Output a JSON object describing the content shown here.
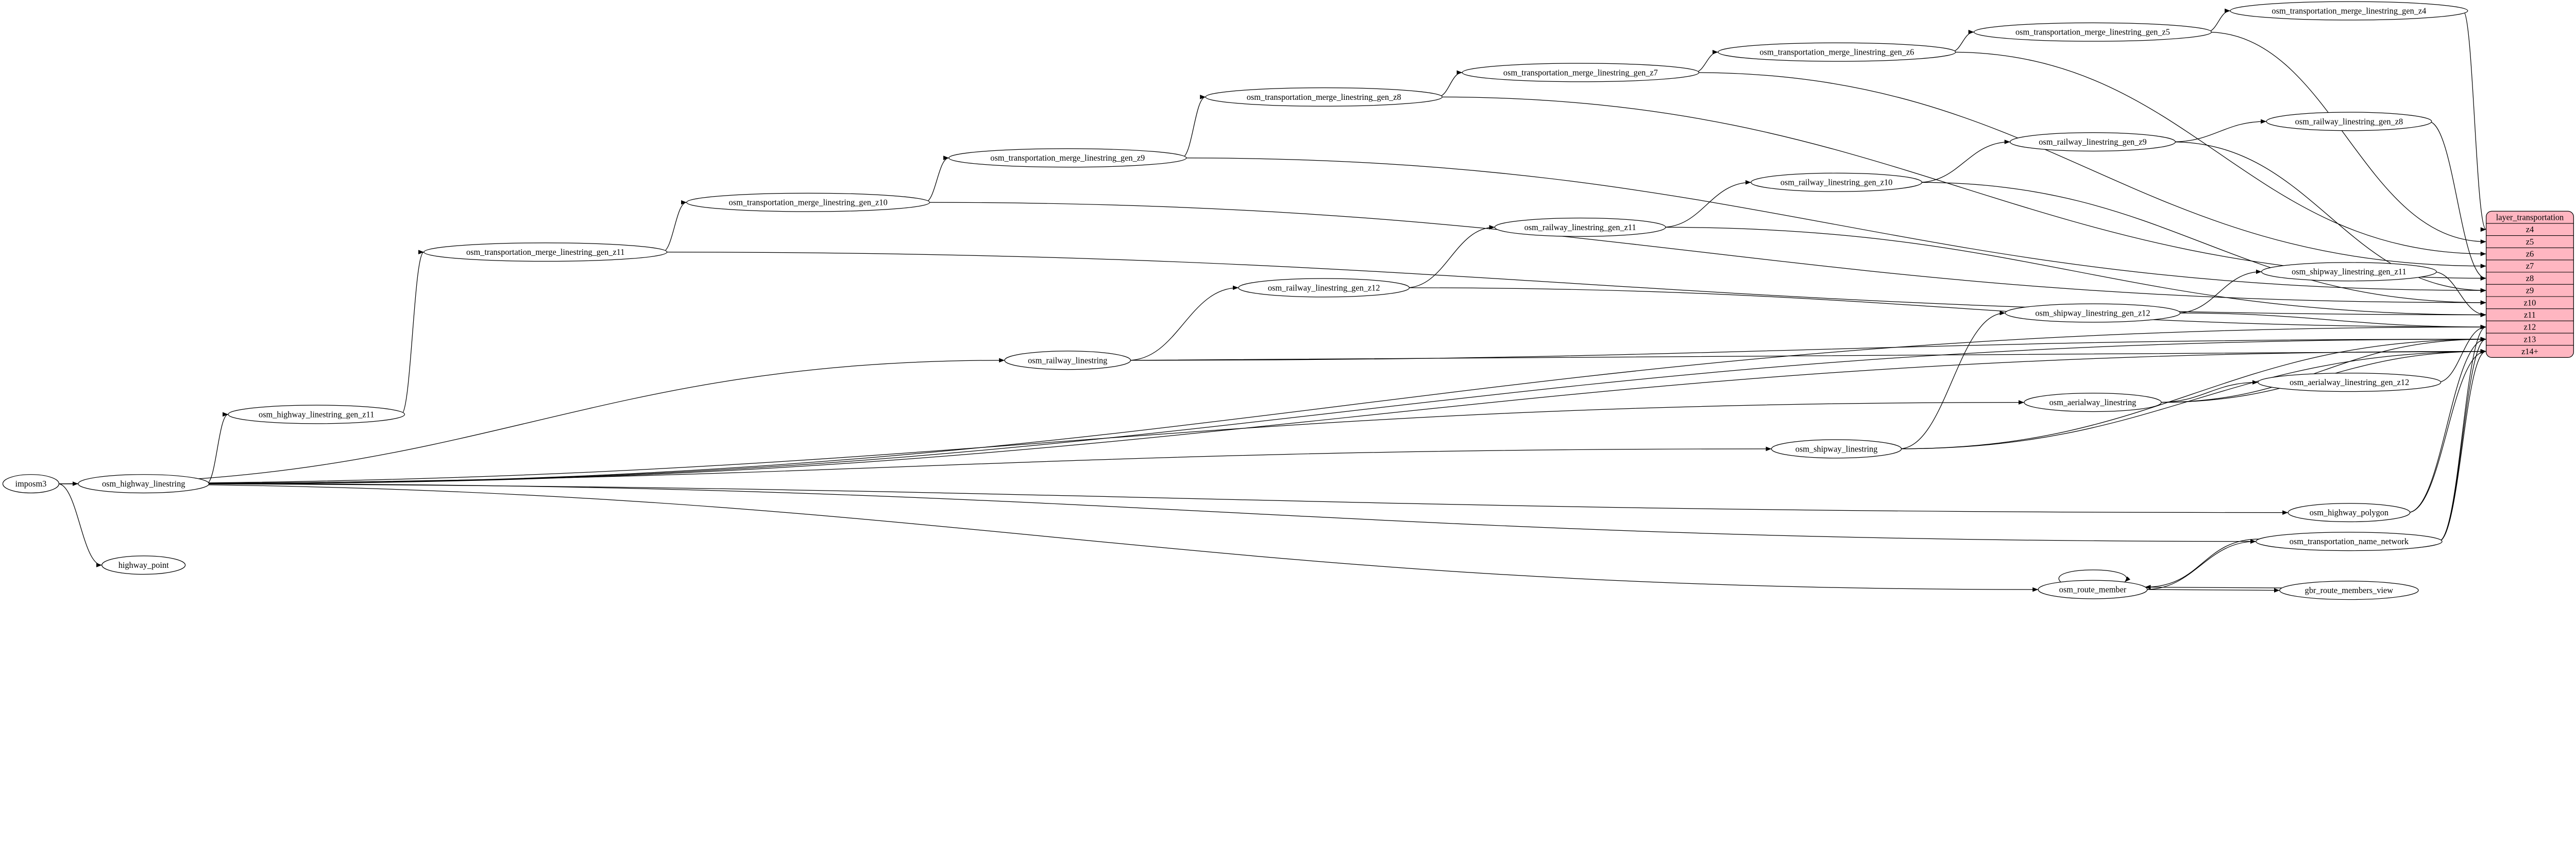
{
  "nodes": [
    {
      "id": "imposm3",
      "label": "imposm3"
    },
    {
      "id": "osm_highway_linestring",
      "label": "osm_highway_linestring"
    },
    {
      "id": "highway_point",
      "label": "highway_point"
    },
    {
      "id": "osm_highway_linestring_gen_z11",
      "label": "osm_highway_linestring_gen_z11"
    },
    {
      "id": "osm_transportation_merge_linestring_gen_z11",
      "label": "osm_transportation_merge_linestring_gen_z11"
    },
    {
      "id": "osm_transportation_merge_linestring_gen_z10",
      "label": "osm_transportation_merge_linestring_gen_z10"
    },
    {
      "id": "osm_transportation_merge_linestring_gen_z9",
      "label": "osm_transportation_merge_linestring_gen_z9"
    },
    {
      "id": "osm_transportation_merge_linestring_gen_z8",
      "label": "osm_transportation_merge_linestring_gen_z8"
    },
    {
      "id": "osm_transportation_merge_linestring_gen_z7",
      "label": "osm_transportation_merge_linestring_gen_z7"
    },
    {
      "id": "osm_transportation_merge_linestring_gen_z6",
      "label": "osm_transportation_merge_linestring_gen_z6"
    },
    {
      "id": "osm_transportation_merge_linestring_gen_z5",
      "label": "osm_transportation_merge_linestring_gen_z5"
    },
    {
      "id": "osm_transportation_merge_linestring_gen_z4",
      "label": "osm_transportation_merge_linestring_gen_z4"
    },
    {
      "id": "osm_railway_linestring",
      "label": "osm_railway_linestring"
    },
    {
      "id": "osm_railway_linestring_gen_z12",
      "label": "osm_railway_linestring_gen_z12"
    },
    {
      "id": "osm_railway_linestring_gen_z11",
      "label": "osm_railway_linestring_gen_z11"
    },
    {
      "id": "osm_railway_linestring_gen_z10",
      "label": "osm_railway_linestring_gen_z10"
    },
    {
      "id": "osm_railway_linestring_gen_z9",
      "label": "osm_railway_linestring_gen_z9"
    },
    {
      "id": "osm_railway_linestring_gen_z8",
      "label": "osm_railway_linestring_gen_z8"
    },
    {
      "id": "osm_shipway_linestring",
      "label": "osm_shipway_linestring"
    },
    {
      "id": "osm_shipway_linestring_gen_z12",
      "label": "osm_shipway_linestring_gen_z12"
    },
    {
      "id": "osm_shipway_linestring_gen_z11",
      "label": "osm_shipway_linestring_gen_z11"
    },
    {
      "id": "osm_aerialway_linestring",
      "label": "osm_aerialway_linestring"
    },
    {
      "id": "osm_aerialway_linestring_gen_z12",
      "label": "osm_aerialway_linestring_gen_z12"
    },
    {
      "id": "osm_highway_polygon",
      "label": "osm_highway_polygon"
    },
    {
      "id": "osm_transportation_name_network",
      "label": "osm_transportation_name_network"
    },
    {
      "id": "osm_route_member",
      "label": "osm_route_member"
    },
    {
      "id": "gbr_route_members_view",
      "label": "gbr_route_members_view"
    }
  ],
  "layer": {
    "title": "layer_transportation",
    "rows": [
      "z4",
      "z5",
      "z6",
      "z7",
      "z8",
      "z9",
      "z10",
      "z11",
      "z12",
      "z13",
      "z14+"
    ],
    "fill_color": "#ffb6c1"
  },
  "edges": [
    [
      "imposm3",
      "osm_highway_linestring"
    ],
    [
      "imposm3",
      "highway_point"
    ],
    [
      "imposm3",
      "osm_railway_linestring"
    ],
    [
      "imposm3",
      "osm_aerialway_linestring"
    ],
    [
      "imposm3",
      "osm_shipway_linestring"
    ],
    [
      "imposm3",
      "osm_highway_polygon"
    ],
    [
      "imposm3",
      "osm_route_member"
    ],
    [
      "osm_highway_linestring",
      "osm_highway_linestring_gen_z11"
    ],
    [
      "osm_highway_linestring",
      "osm_transportation_name_network"
    ],
    [
      "osm_highway_linestring",
      "layer:z12"
    ],
    [
      "osm_highway_linestring",
      "layer:z13"
    ],
    [
      "osm_highway_linestring",
      "layer:z14+"
    ],
    [
      "osm_highway_linestring_gen_z11",
      "osm_transportation_merge_linestring_gen_z11"
    ],
    [
      "osm_transportation_merge_linestring_gen_z11",
      "osm_transportation_merge_linestring_gen_z10"
    ],
    [
      "osm_transportation_merge_linestring_gen_z11",
      "layer:z11"
    ],
    [
      "osm_transportation_merge_linestring_gen_z10",
      "osm_transportation_merge_linestring_gen_z9"
    ],
    [
      "osm_transportation_merge_linestring_gen_z10",
      "layer:z10"
    ],
    [
      "osm_transportation_merge_linestring_gen_z9",
      "osm_transportation_merge_linestring_gen_z8"
    ],
    [
      "osm_transportation_merge_linestring_gen_z9",
      "layer:z9"
    ],
    [
      "osm_transportation_merge_linestring_gen_z8",
      "osm_transportation_merge_linestring_gen_z7"
    ],
    [
      "osm_transportation_merge_linestring_gen_z8",
      "layer:z8"
    ],
    [
      "osm_transportation_merge_linestring_gen_z7",
      "osm_transportation_merge_linestring_gen_z6"
    ],
    [
      "osm_transportation_merge_linestring_gen_z7",
      "layer:z7"
    ],
    [
      "osm_transportation_merge_linestring_gen_z6",
      "osm_transportation_merge_linestring_gen_z5"
    ],
    [
      "osm_transportation_merge_linestring_gen_z6",
      "layer:z6"
    ],
    [
      "osm_transportation_merge_linestring_gen_z5",
      "osm_transportation_merge_linestring_gen_z4"
    ],
    [
      "osm_transportation_merge_linestring_gen_z5",
      "layer:z5"
    ],
    [
      "osm_transportation_merge_linestring_gen_z4",
      "layer:z4"
    ],
    [
      "osm_railway_linestring",
      "osm_railway_linestring_gen_z12"
    ],
    [
      "osm_railway_linestring",
      "layer:z13"
    ],
    [
      "osm_railway_linestring",
      "layer:z14+"
    ],
    [
      "osm_railway_linestring_gen_z12",
      "osm_railway_linestring_gen_z11"
    ],
    [
      "osm_railway_linestring_gen_z12",
      "layer:z12"
    ],
    [
      "osm_railway_linestring_gen_z11",
      "osm_railway_linestring_gen_z10"
    ],
    [
      "osm_railway_linestring_gen_z11",
      "layer:z11"
    ],
    [
      "osm_railway_linestring_gen_z10",
      "osm_railway_linestring_gen_z9"
    ],
    [
      "osm_railway_linestring_gen_z10",
      "layer:z10"
    ],
    [
      "osm_railway_linestring_gen_z9",
      "osm_railway_linestring_gen_z8"
    ],
    [
      "osm_railway_linestring_gen_z9",
      "layer:z9"
    ],
    [
      "osm_railway_linestring_gen_z8",
      "layer:z8"
    ],
    [
      "osm_shipway_linestring",
      "osm_shipway_linestring_gen_z12"
    ],
    [
      "osm_shipway_linestring",
      "layer:z13"
    ],
    [
      "osm_shipway_linestring",
      "layer:z14+"
    ],
    [
      "osm_shipway_linestring_gen_z12",
      "osm_shipway_linestring_gen_z11"
    ],
    [
      "osm_shipway_linestring_gen_z12",
      "layer:z12"
    ],
    [
      "osm_shipway_linestring_gen_z11",
      "layer:z11"
    ],
    [
      "osm_aerialway_linestring",
      "osm_aerialway_linestring_gen_z12"
    ],
    [
      "osm_aerialway_linestring",
      "layer:z13"
    ],
    [
      "osm_aerialway_linestring",
      "layer:z14+"
    ],
    [
      "osm_aerialway_linestring_gen_z12",
      "layer:z12"
    ],
    [
      "osm_highway_polygon",
      "layer:z13"
    ],
    [
      "osm_highway_polygon",
      "layer:z14+"
    ],
    [
      "osm_transportation_name_network",
      "layer:z12"
    ],
    [
      "osm_transportation_name_network",
      "layer:z13"
    ],
    [
      "osm_transportation_name_network",
      "layer:z14+"
    ],
    [
      "osm_transportation_name_network",
      "osm_route_member"
    ],
    [
      "osm_route_member",
      "osm_transportation_name_network"
    ],
    [
      "osm_route_member",
      "osm_route_member"
    ],
    [
      "osm_route_member",
      "gbr_route_members_view"
    ],
    [
      "gbr_route_members_view",
      "osm_route_member"
    ]
  ]
}
